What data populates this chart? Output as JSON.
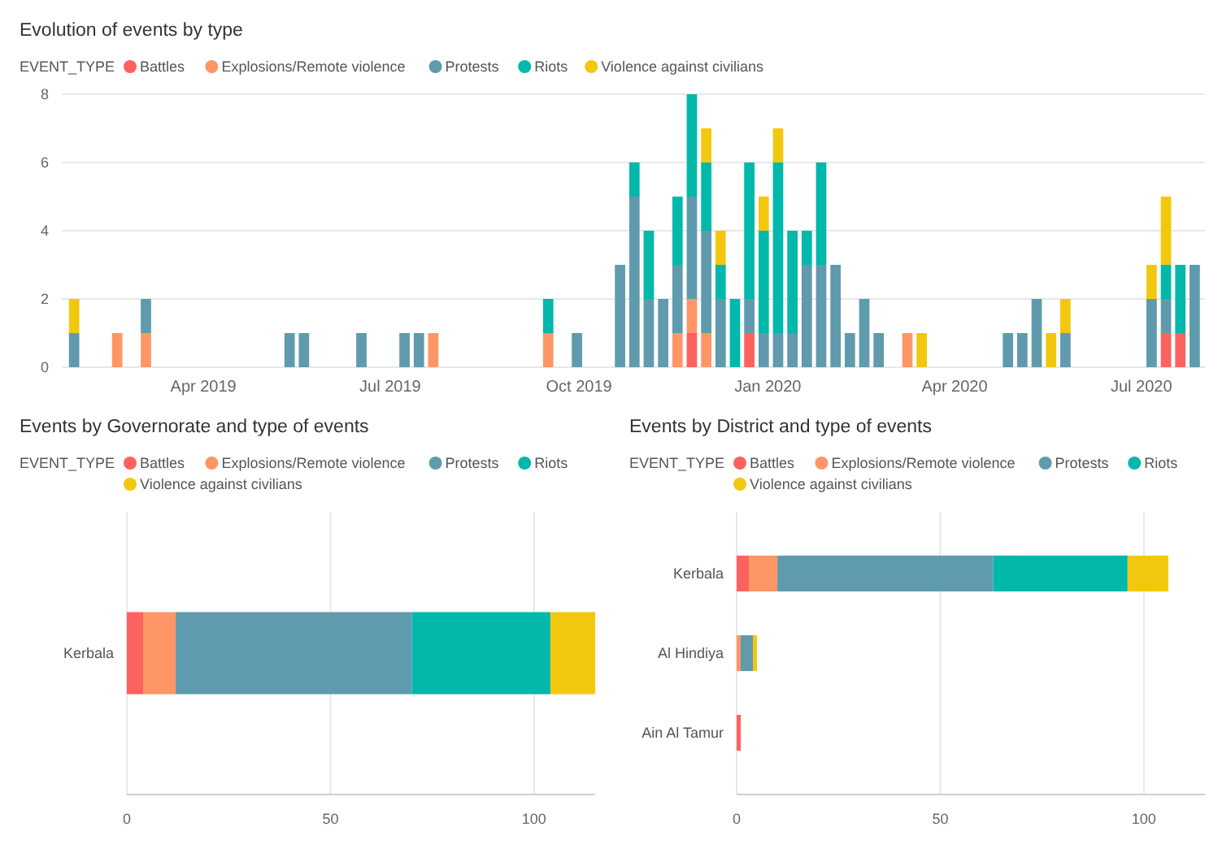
{
  "chart_data": [
    {
      "type": "bar",
      "title": "Evolution of events by type",
      "legend_title": "EVENT_TYPE",
      "legend": "top left",
      "stacked": true,
      "grid": "y",
      "x": [
        "2019-01-28",
        "2019-02-18",
        "2019-03-04",
        "2019-05-13",
        "2019-05-20",
        "2019-06-17",
        "2019-07-08",
        "2019-07-15",
        "2019-07-22",
        "2019-09-16",
        "2019-09-30",
        "2019-10-21",
        "2019-10-28",
        "2019-11-04",
        "2019-11-11",
        "2019-11-18",
        "2019-11-25",
        "2019-12-02",
        "2019-12-09",
        "2019-12-16",
        "2019-12-23",
        "2019-12-30",
        "2020-01-06",
        "2020-01-13",
        "2020-01-20",
        "2020-01-27",
        "2020-02-03",
        "2020-02-10",
        "2020-02-17",
        "2020-02-24",
        "2020-03-09",
        "2020-03-16",
        "2020-04-27",
        "2020-05-04",
        "2020-05-11",
        "2020-05-18",
        "2020-05-25",
        "2020-07-06",
        "2020-07-13",
        "2020-07-20",
        "2020-07-27"
      ],
      "xlim": [
        "2019-01-22",
        "2020-08-01"
      ],
      "xticks": [
        {
          "value": "2019-04-01",
          "label": "Apr 2019"
        },
        {
          "value": "2019-07-01",
          "label": "Jul 2019"
        },
        {
          "value": "2019-10-01",
          "label": "Oct 2019"
        },
        {
          "value": "2020-01-01",
          "label": "Jan 2020"
        },
        {
          "value": "2020-04-01",
          "label": "Apr 2020"
        },
        {
          "value": "2020-07-01",
          "label": "Jul 2020"
        }
      ],
      "ylim": [
        0,
        8
      ],
      "yticks": [
        0,
        2,
        4,
        6,
        8
      ],
      "series": [
        {
          "name": "Battles",
          "color": "#fd625e",
          "values": [
            null,
            null,
            null,
            null,
            null,
            null,
            null,
            null,
            null,
            null,
            null,
            null,
            null,
            null,
            null,
            null,
            1,
            null,
            null,
            null,
            1,
            null,
            null,
            null,
            null,
            null,
            null,
            null,
            null,
            null,
            null,
            null,
            null,
            null,
            null,
            null,
            null,
            null,
            1,
            1,
            null
          ]
        },
        {
          "name": "Explosions/Remote violence",
          "color": "#fe9666",
          "values": [
            null,
            1,
            1,
            null,
            null,
            null,
            null,
            null,
            1,
            1,
            null,
            null,
            null,
            null,
            null,
            1,
            1,
            1,
            null,
            null,
            null,
            null,
            null,
            null,
            null,
            null,
            null,
            null,
            null,
            null,
            1,
            null,
            null,
            null,
            null,
            null,
            null,
            null,
            null,
            null,
            null
          ]
        },
        {
          "name": "Protests",
          "color": "#5f9bad",
          "values": [
            1,
            null,
            1,
            1,
            1,
            1,
            1,
            1,
            null,
            null,
            1,
            3,
            5,
            2,
            2,
            2,
            3,
            3,
            2,
            null,
            1,
            1,
            1,
            1,
            3,
            3,
            3,
            1,
            2,
            1,
            null,
            null,
            1,
            1,
            2,
            null,
            1,
            2,
            1,
            null,
            3
          ]
        },
        {
          "name": "Riots",
          "color": "#01b8aa",
          "values": [
            null,
            null,
            null,
            null,
            null,
            null,
            null,
            null,
            null,
            1,
            null,
            null,
            1,
            2,
            null,
            2,
            3,
            2,
            1,
            2,
            4,
            3,
            5,
            3,
            1,
            3,
            null,
            null,
            null,
            null,
            null,
            null,
            null,
            null,
            null,
            null,
            null,
            null,
            1,
            2,
            null
          ]
        },
        {
          "name": "Violence against civilians",
          "color": "#f2c80f",
          "values": [
            1,
            null,
            null,
            null,
            null,
            null,
            null,
            null,
            null,
            null,
            null,
            null,
            null,
            null,
            null,
            null,
            null,
            1,
            1,
            null,
            null,
            1,
            1,
            null,
            null,
            null,
            null,
            null,
            null,
            null,
            null,
            1,
            null,
            null,
            null,
            1,
            1,
            1,
            2,
            null,
            null
          ]
        }
      ]
    },
    {
      "type": "bar",
      "orientation": "horizontal",
      "title": "Events by Governorate and type of events",
      "legend_title": "EVENT_TYPE",
      "legend": "top left",
      "stacked": true,
      "grid": "x",
      "categories": [
        "Kerbala"
      ],
      "xlim": [
        0,
        115
      ],
      "xticks": [
        0,
        50,
        100
      ],
      "series": [
        {
          "name": "Battles",
          "color": "#fd625e",
          "values": [
            4
          ]
        },
        {
          "name": "Explosions/Remote violence",
          "color": "#fe9666",
          "values": [
            8
          ]
        },
        {
          "name": "Protests",
          "color": "#5f9bad",
          "values": [
            58
          ]
        },
        {
          "name": "Riots",
          "color": "#01b8aa",
          "values": [
            34
          ]
        },
        {
          "name": "Violence against civilians",
          "color": "#f2c80f",
          "values": [
            11
          ]
        }
      ]
    },
    {
      "type": "bar",
      "orientation": "horizontal",
      "title": "Events by District and type of events",
      "legend_title": "EVENT_TYPE",
      "legend": "top left",
      "stacked": true,
      "grid": "x",
      "categories": [
        "Kerbala",
        "Al Hindiya",
        "Ain Al Tamur"
      ],
      "xlim": [
        0,
        115
      ],
      "xticks": [
        0,
        50,
        100
      ],
      "series": [
        {
          "name": "Battles",
          "color": "#fd625e",
          "values": [
            3,
            null,
            1
          ]
        },
        {
          "name": "Explosions/Remote violence",
          "color": "#fe9666",
          "values": [
            7,
            1,
            null
          ]
        },
        {
          "name": "Protests",
          "color": "#5f9bad",
          "values": [
            53,
            3,
            null
          ]
        },
        {
          "name": "Riots",
          "color": "#01b8aa",
          "values": [
            33,
            null,
            null
          ]
        },
        {
          "name": "Violence against civilians",
          "color": "#f2c80f",
          "values": [
            10,
            1,
            null
          ]
        }
      ]
    }
  ]
}
